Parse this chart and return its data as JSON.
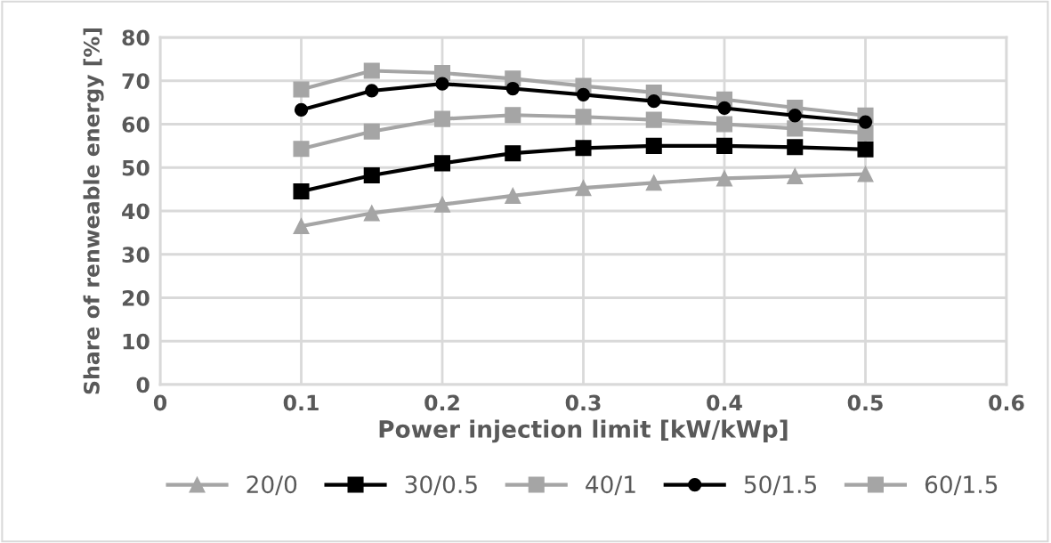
{
  "chart_data": {
    "type": "line",
    "xlabel": "Power injection limit [kW/kWp]",
    "ylabel": "Share of renweable energy [%]",
    "x": [
      0.1,
      0.15,
      0.2,
      0.25,
      0.3,
      0.35,
      0.4,
      0.45,
      0.5
    ],
    "series": [
      {
        "name": "20/0",
        "color": "#a5a5a5",
        "marker": "triangle",
        "values": [
          36.5,
          39.5,
          41.5,
          43.5,
          45.3,
          46.5,
          47.5,
          48,
          48.5
        ]
      },
      {
        "name": "30/0.5",
        "color": "#000000",
        "marker": "square",
        "values": [
          44.5,
          48.2,
          51,
          53.3,
          54.5,
          55,
          55,
          54.7,
          54.2
        ]
      },
      {
        "name": "40/1",
        "color": "#a5a5a5",
        "marker": "square",
        "values": [
          54.3,
          58.3,
          61.2,
          62.1,
          61.7,
          61,
          60,
          59,
          58
        ]
      },
      {
        "name": "50/1.5",
        "color": "#000000",
        "marker": "circle",
        "values": [
          63.3,
          67.7,
          69.3,
          68.2,
          66.8,
          65.3,
          63.7,
          62,
          60.5
        ]
      },
      {
        "name": "60/1.5",
        "color": "#a5a5a5",
        "marker": "square",
        "values": [
          68,
          72.3,
          71.8,
          70.5,
          68.8,
          67.3,
          65.7,
          63.8,
          62
        ]
      }
    ],
    "xlim": [
      0,
      0.6
    ],
    "xticks": [
      0,
      0.1,
      0.2,
      0.3,
      0.4,
      0.5,
      0.6
    ],
    "ylim": [
      0,
      80
    ],
    "yticks": [
      0,
      10,
      20,
      30,
      40,
      50,
      60,
      70,
      80
    ],
    "grid": true,
    "legend": "bottom",
    "line_style": "solid"
  }
}
